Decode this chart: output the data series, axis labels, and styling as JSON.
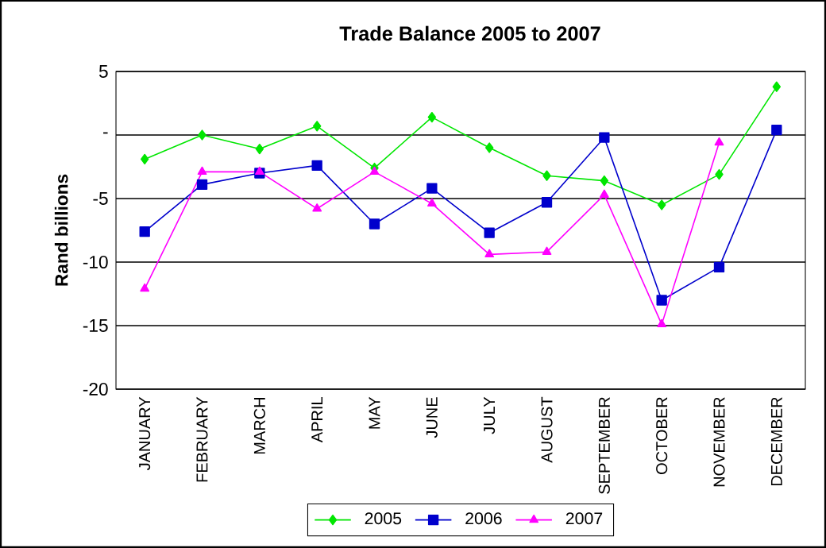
{
  "chart_data": {
    "type": "line",
    "title": "Trade Balance 2005 to 2007",
    "ylabel": "Rand billions",
    "categories": [
      "JANUARY",
      "FEBRUARY",
      "MARCH",
      "APRIL",
      "MAY",
      "JUNE",
      "JULY",
      "AUGUST",
      "SEPTEMBER",
      "OCTOBER",
      "NOVEMBER",
      "DECEMBER"
    ],
    "series": [
      {
        "name": "2005",
        "color": "#00e600",
        "marker": "diamond",
        "values": [
          -1.9,
          0,
          -1.1,
          0.7,
          -2.6,
          1.4,
          -1.0,
          -3.2,
          -3.6,
          -5.5,
          -3.1,
          3.8
        ]
      },
      {
        "name": "2006",
        "color": "#0000cc",
        "marker": "square",
        "values": [
          -7.6,
          -3.9,
          -3.0,
          -2.4,
          -7.0,
          -4.2,
          -7.7,
          -5.3,
          -0.2,
          -13.0,
          -10.4,
          0.4
        ]
      },
      {
        "name": "2007",
        "color": "#ff00ff",
        "marker": "triangle",
        "values": [
          -12.1,
          -2.9,
          -2.9,
          -5.8,
          -2.9,
          -5.4,
          -9.4,
          -9.2,
          -4.7,
          -14.9,
          -0.6,
          null
        ]
      }
    ],
    "ylim": [
      -20,
      5
    ],
    "yticks": [
      5,
      {
        "value": 0,
        "label": "-"
      },
      -5,
      -10,
      -15,
      -20
    ],
    "grid": "y",
    "legend": "bottom",
    "line_style": "solid"
  }
}
